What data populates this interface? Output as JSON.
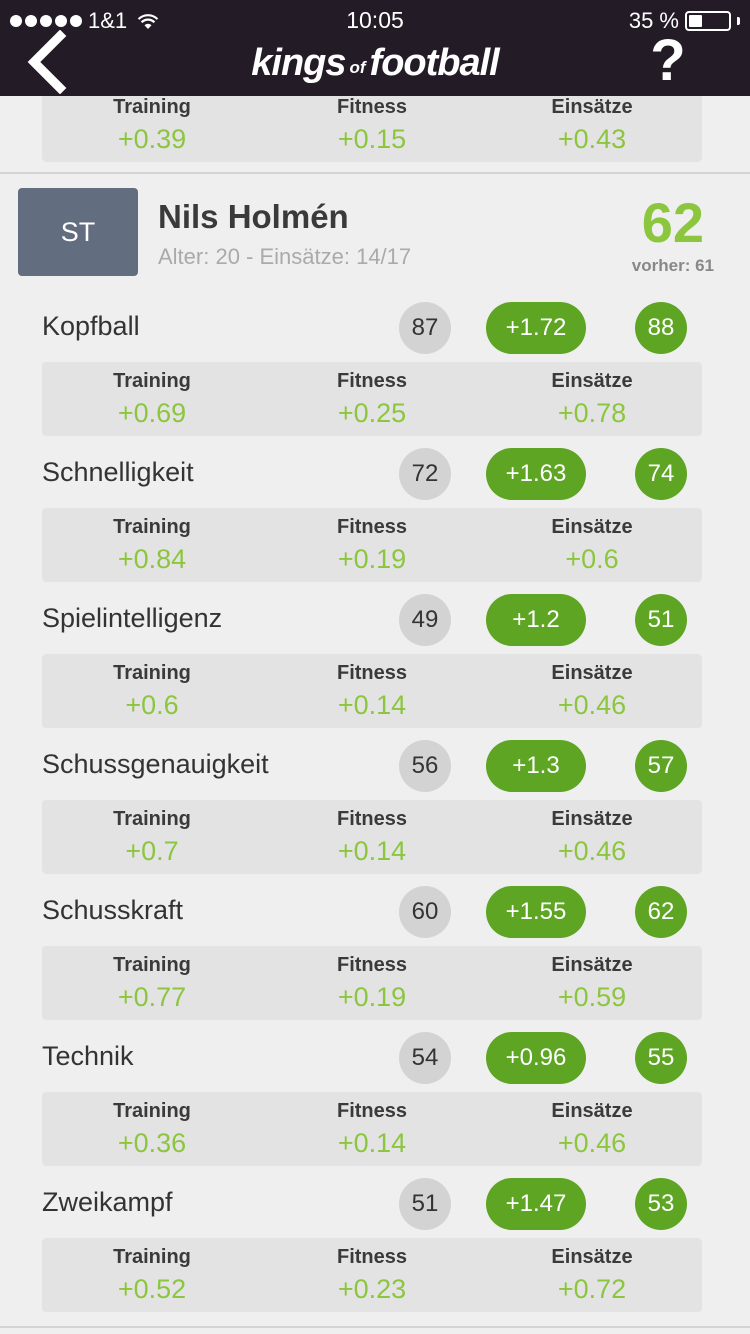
{
  "status_bar": {
    "carrier": "1&1",
    "time": "10:05",
    "battery": "35 %",
    "battery_level": 0.35
  },
  "header": {
    "logo_part1": "kings",
    "logo_part2": "of",
    "logo_part3": "football",
    "help": "?"
  },
  "labels": {
    "training": "Training",
    "fitness": "Fitness",
    "einsaetze": "Einsätze"
  },
  "previous_stats": {
    "training": "+0.39",
    "fitness": "+0.15",
    "einsaetze": "+0.43"
  },
  "player": {
    "position": "ST",
    "name": "Nils Holmén",
    "meta": "Alter: 20 - Einsätze: 14/17",
    "overall": "62",
    "previous": "vorher: 61"
  },
  "skills": [
    {
      "name": "Kopfball",
      "old": "87",
      "delta": "+1.72",
      "new": "88",
      "training": "+0.69",
      "fitness": "+0.25",
      "einsaetze": "+0.78"
    },
    {
      "name": "Schnelligkeit",
      "old": "72",
      "delta": "+1.63",
      "new": "74",
      "training": "+0.84",
      "fitness": "+0.19",
      "einsaetze": "+0.6"
    },
    {
      "name": "Spielintelligenz",
      "old": "49",
      "delta": "+1.2",
      "new": "51",
      "training": "+0.6",
      "fitness": "+0.14",
      "einsaetze": "+0.46"
    },
    {
      "name": "Schussgenauigkeit",
      "old": "56",
      "delta": "+1.3",
      "new": "57",
      "training": "+0.7",
      "fitness": "+0.14",
      "einsaetze": "+0.46"
    },
    {
      "name": "Schusskraft",
      "old": "60",
      "delta": "+1.55",
      "new": "62",
      "training": "+0.77",
      "fitness": "+0.19",
      "einsaetze": "+0.59"
    },
    {
      "name": "Technik",
      "old": "54",
      "delta": "+0.96",
      "new": "55",
      "training": "+0.36",
      "fitness": "+0.14",
      "einsaetze": "+0.46"
    },
    {
      "name": "Zweikampf",
      "old": "51",
      "delta": "+1.47",
      "new": "53",
      "training": "+0.52",
      "fitness": "+0.23",
      "einsaetze": "+0.72"
    }
  ],
  "colors": {
    "header_bg": "#231c27",
    "accent_green": "#5ea523",
    "value_green": "#8cc63f",
    "position_badge": "#636d80"
  }
}
